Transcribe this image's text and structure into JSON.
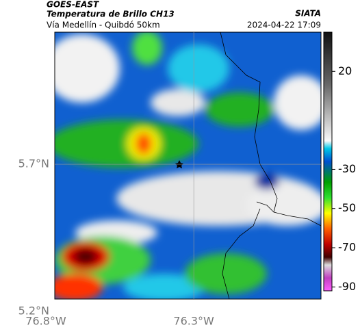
{
  "header": {
    "title": "GOES-EAST",
    "subtitle": "Temperatura de Brillo CH13",
    "route": "Vía Medellín - Quibdó 50km",
    "source": "SIATA",
    "timestamp": "2024-04-22 17:09"
  },
  "map": {
    "xlim": [
      -76.77,
      -75.87
    ],
    "ylim": [
      5.242,
      6.149
    ],
    "xticks": [
      {
        "value": -76.8,
        "label": "76.8°W"
      },
      {
        "value": -76.3,
        "label": "76.3°W"
      }
    ],
    "yticks": [
      {
        "value": 5.7,
        "label": "5.7°N"
      },
      {
        "value": 5.2,
        "label": "5.2°N"
      }
    ],
    "grid": true
  },
  "colorbar": {
    "lim": [
      40,
      -92
    ],
    "ticks": [
      20,
      -30,
      -50,
      -70,
      -90
    ]
  }
}
